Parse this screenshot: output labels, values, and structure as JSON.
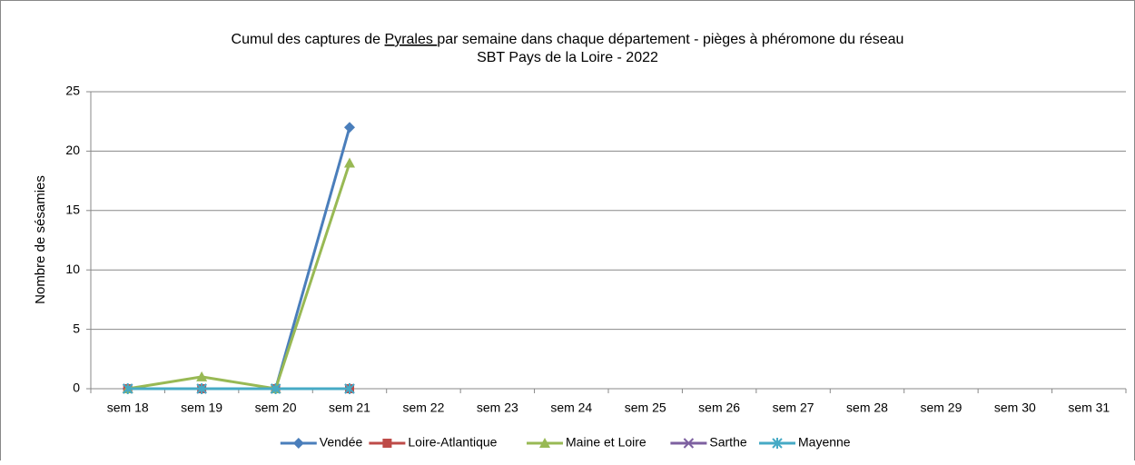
{
  "chart_data": {
    "type": "line",
    "title": [
      [
        "Cumul des captures de ",
        "Pyrales ",
        "par semaine dans chaque département - pièges à phéromone du réseau"
      ],
      [
        "SBT Pays de la Loire - 2022"
      ]
    ],
    "y_label": "Nombre de sésamies",
    "categories": [
      "sem 18",
      "sem 19",
      "sem 20",
      "sem 21",
      "sem 22",
      "sem 23",
      "sem 24",
      "sem 25",
      "sem 26",
      "sem 27",
      "sem 28",
      "sem 29",
      "sem 30",
      "sem 31"
    ],
    "series": [
      {
        "name": "Vendée",
        "color": "#4a7ebb",
        "marker": "diamond",
        "values": [
          0,
          0,
          0,
          22,
          null,
          null,
          null,
          null,
          null,
          null,
          null,
          null,
          null,
          null
        ]
      },
      {
        "name": "Loire-Atlantique",
        "color": "#be4b48",
        "marker": "square",
        "values": [
          0,
          0,
          0,
          0,
          null,
          null,
          null,
          null,
          null,
          null,
          null,
          null,
          null,
          null
        ]
      },
      {
        "name": "Maine et Loire",
        "color": "#98b954",
        "marker": "triangle",
        "values": [
          0,
          1,
          0,
          19,
          null,
          null,
          null,
          null,
          null,
          null,
          null,
          null,
          null,
          null
        ]
      },
      {
        "name": "Sarthe",
        "color": "#7d60a0",
        "marker": "x",
        "values": [
          0,
          0,
          0,
          0,
          null,
          null,
          null,
          null,
          null,
          null,
          null,
          null,
          null,
          null
        ]
      },
      {
        "name": "Mayenne",
        "color": "#46aac5",
        "marker": "asterisk",
        "values": [
          0,
          0,
          0,
          0,
          null,
          null,
          null,
          null,
          null,
          null,
          null,
          null,
          null,
          null
        ]
      }
    ],
    "ylim": [
      0,
      25
    ],
    "yticks": [
      0,
      5,
      10,
      15,
      20,
      25
    ],
    "grid": true,
    "legend": "bottom"
  }
}
